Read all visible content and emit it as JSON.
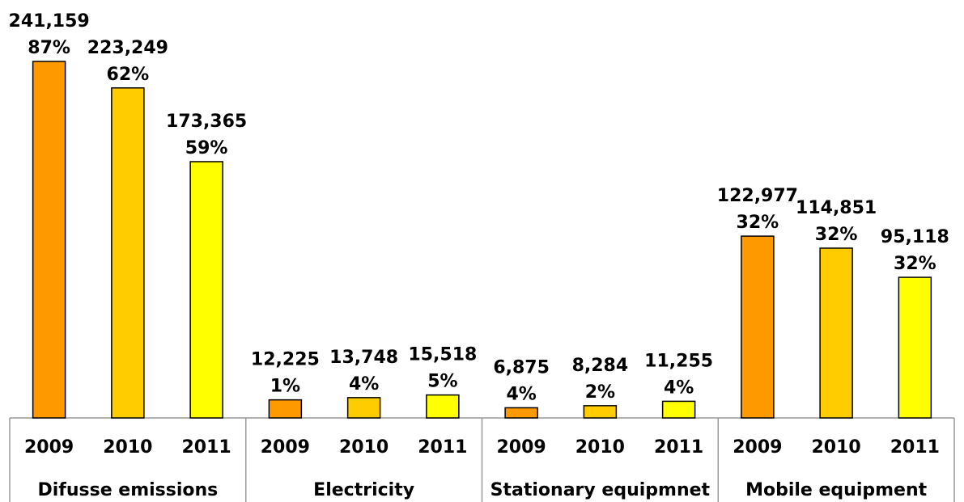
{
  "chart_data": {
    "type": "bar",
    "title": "",
    "xlabel": "",
    "ylabel": "",
    "ylim": [
      0,
      250000
    ],
    "grid": false,
    "groups": [
      {
        "name": "Difusse emissions",
        "bars": [
          {
            "year": "2009",
            "value": 241159,
            "value_label": "241,159",
            "pct": "87%"
          },
          {
            "year": "2010",
            "value": 223249,
            "value_label": "223,249",
            "pct": "62%"
          },
          {
            "year": "2011",
            "value": 173365,
            "value_label": "173,365",
            "pct": "59%"
          }
        ]
      },
      {
        "name": "Electricity",
        "bars": [
          {
            "year": "2009",
            "value": 12225,
            "value_label": "12,225",
            "pct": "1%"
          },
          {
            "year": "2010",
            "value": 13748,
            "value_label": "13,748",
            "pct": "4%"
          },
          {
            "year": "2011",
            "value": 15518,
            "value_label": "15,518",
            "pct": "5%"
          }
        ]
      },
      {
        "name": "Stationary equipmnet",
        "bars": [
          {
            "year": "2009",
            "value": 6875,
            "value_label": "6,875",
            "pct": "4%"
          },
          {
            "year": "2010",
            "value": 8284,
            "value_label": "8,284",
            "pct": "2%"
          },
          {
            "year": "2011",
            "value": 11255,
            "value_label": "11,255",
            "pct": "4%"
          }
        ]
      },
      {
        "name": "Mobile equipment",
        "bars": [
          {
            "year": "2009",
            "value": 122977,
            "value_label": "122,977",
            "pct": "32%"
          },
          {
            "year": "2010",
            "value": 114851,
            "value_label": "114,851",
            "pct": "32%"
          },
          {
            "year": "2011",
            "value": 95118,
            "value_label": "95,118",
            "pct": "32%"
          }
        ]
      }
    ],
    "colors": {
      "2009": "#ff9900",
      "2010": "#ffcc00",
      "2011": "#ffff00"
    },
    "axis_color": "#999999"
  }
}
